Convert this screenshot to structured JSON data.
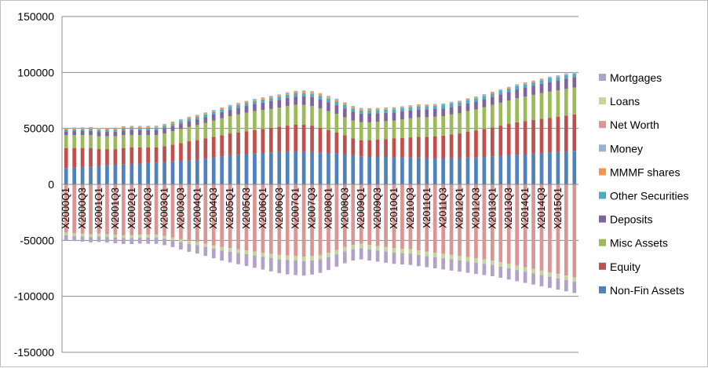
{
  "chart_data": {
    "type": "bar",
    "stacked": true,
    "title": "",
    "xlabel": "",
    "ylabel": "",
    "ylim": [
      -150000,
      150000
    ],
    "yticks": [
      150000,
      100000,
      50000,
      0,
      -50000,
      -100000,
      -150000
    ],
    "ytick_labels": [
      "150000",
      "100000",
      "50000",
      "0",
      "-50000",
      "-100000",
      "-150000"
    ],
    "grid": "horizontal",
    "legend_position": "right",
    "categories": [
      "X2000Q1",
      "X2000Q2",
      "X2000Q3",
      "X2000Q4",
      "X2001Q1",
      "X2001Q2",
      "X2001Q3",
      "X2001Q4",
      "X2002Q1",
      "X2002Q2",
      "X2002Q3",
      "X2002Q4",
      "X2003Q1",
      "X2003Q2",
      "X2003Q3",
      "X2003Q4",
      "X2004Q1",
      "X2004Q2",
      "X2004Q3",
      "X2004Q4",
      "X2005Q1",
      "X2005Q2",
      "X2005Q3",
      "X2005Q4",
      "X2006Q1",
      "X2006Q2",
      "X2006Q3",
      "X2006Q4",
      "X2007Q1",
      "X2007Q2",
      "X2007Q3",
      "X2007Q4",
      "X2008Q1",
      "X2008Q2",
      "X2008Q3",
      "X2008Q4",
      "X2009Q1",
      "X2009Q2",
      "X2009Q3",
      "X2009Q4",
      "X2010Q1",
      "X2010Q2",
      "X2010Q3",
      "X2010Q4",
      "X2011Q1",
      "X2011Q2",
      "X2011Q3",
      "X2011Q4",
      "X2012Q1",
      "X2012Q2",
      "X2012Q3",
      "X2012Q4",
      "X2013Q1",
      "X2013Q2",
      "X2013Q3",
      "X2013Q4",
      "X2014Q1",
      "X2014Q2",
      "X2014Q3",
      "X2014Q4",
      "X2015Q1",
      "X2015Q2",
      "X2015Q3"
    ],
    "shown_category_labels": [
      "X2000Q1",
      "X2000Q3",
      "X2001Q1",
      "X2001Q3",
      "X2002Q1",
      "X2002Q3",
      "X2003Q1",
      "X2003Q3",
      "X2004Q1",
      "X2004Q3",
      "X2005Q1",
      "X2005Q3",
      "X2006Q1",
      "X2006Q3",
      "X2007Q1",
      "X2007Q3",
      "X2008Q1",
      "X2008Q3",
      "X2009Q1",
      "X2009Q3",
      "X2010Q1",
      "X2010Q3",
      "X2011Q1",
      "X2011Q3",
      "X2012Q1",
      "X2012Q3",
      "X2013Q1",
      "X2013Q3",
      "X2014Q1",
      "X2014Q3",
      "X2015Q1"
    ],
    "series": [
      {
        "name": "Non-Fin Assets",
        "color": "#4f81bd",
        "values": [
          14500,
          15000,
          15500,
          16000,
          16500,
          17000,
          17500,
          18000,
          18200,
          18500,
          19000,
          19500,
          20000,
          20500,
          21000,
          21500,
          22000,
          23000,
          24000,
          25000,
          26000,
          26500,
          27000,
          27500,
          28000,
          28500,
          29000,
          29500,
          29500,
          29500,
          29000,
          28500,
          28000,
          27500,
          27000,
          26000,
          25000,
          24500,
          24500,
          24500,
          24000,
          24000,
          24000,
          24000,
          23500,
          23500,
          23500,
          23500,
          23500,
          24000,
          24000,
          24500,
          25000,
          25500,
          26000,
          26500,
          27000,
          27500,
          28000,
          28500,
          29000,
          29500,
          30000
        ]
      },
      {
        "name": "Equity",
        "color": "#c0504d",
        "values": [
          18000,
          17500,
          17000,
          16500,
          15000,
          14500,
          14000,
          14500,
          15000,
          14500,
          14000,
          13500,
          14000,
          15000,
          16000,
          17000,
          17500,
          18000,
          18500,
          19000,
          19500,
          20000,
          20500,
          21000,
          21500,
          22000,
          22500,
          23000,
          24000,
          24000,
          23500,
          22000,
          20500,
          19000,
          17000,
          15000,
          14500,
          15000,
          15500,
          16000,
          17000,
          17500,
          18000,
          18500,
          19000,
          19500,
          20000,
          21000,
          22000,
          23000,
          24000,
          25000,
          26000,
          27000,
          28000,
          29000,
          29500,
          30000,
          30500,
          31000,
          31500,
          32000,
          32500
        ]
      },
      {
        "name": "Misc Assets",
        "color": "#9bbb59",
        "values": [
          11500,
          11500,
          11500,
          11500,
          11500,
          11500,
          11500,
          11500,
          11000,
          11000,
          11000,
          11000,
          11500,
          12000,
          12500,
          13000,
          13500,
          14000,
          14500,
          15000,
          15500,
          16000,
          16500,
          17000,
          17000,
          17000,
          17000,
          17500,
          17500,
          17500,
          17500,
          17500,
          17000,
          16500,
          16000,
          16000,
          16000,
          16000,
          16000,
          16000,
          16000,
          16500,
          17000,
          17500,
          17500,
          17500,
          17500,
          18000,
          18000,
          18500,
          19000,
          19500,
          20000,
          20500,
          21000,
          21500,
          22000,
          22500,
          23000,
          23500,
          23500,
          24000,
          24000
        ]
      },
      {
        "name": "Deposits",
        "color": "#8064a2",
        "values": [
          3500,
          3600,
          3700,
          3800,
          3900,
          4000,
          4100,
          4200,
          4300,
          4400,
          4500,
          4600,
          4700,
          4800,
          4900,
          5000,
          5100,
          5200,
          5400,
          5600,
          5800,
          6000,
          6200,
          6400,
          6600,
          6800,
          7000,
          7200,
          7400,
          7600,
          7800,
          8000,
          8000,
          8000,
          7900,
          7800,
          7700,
          7600,
          7500,
          7400,
          7300,
          7200,
          7100,
          7000,
          6900,
          6800,
          6700,
          6700,
          6700,
          6800,
          6900,
          7000,
          7200,
          7400,
          7600,
          7800,
          8000,
          8200,
          8400,
          8600,
          8800,
          9000,
          9200
        ]
      },
      {
        "name": "Other Securities",
        "color": "#4bacc6",
        "values": [
          1500,
          1550,
          1600,
          1650,
          1700,
          1750,
          1800,
          1850,
          1900,
          1950,
          2000,
          2050,
          2100,
          2150,
          2200,
          2250,
          2300,
          2350,
          2400,
          2450,
          2500,
          2550,
          2600,
          2650,
          2700,
          2750,
          2800,
          2850,
          2900,
          2950,
          3000,
          3000,
          3000,
          2950,
          2900,
          2850,
          2800,
          2750,
          2750,
          2750,
          2750,
          2750,
          2800,
          2850,
          2900,
          2950,
          3000,
          3000,
          3000,
          3000,
          3000,
          3000,
          3000,
          3000,
          3000,
          3000,
          3000,
          3000,
          3000,
          3000,
          3000,
          3000,
          3000
        ]
      },
      {
        "name": "MMMF shares",
        "color": "#f79646",
        "values": [
          800,
          850,
          900,
          950,
          1000,
          1050,
          1100,
          1100,
          1100,
          1100,
          1050,
          1000,
          950,
          900,
          900,
          900,
          900,
          900,
          900,
          900,
          950,
          1000,
          1050,
          1100,
          1150,
          1200,
          1300,
          1400,
          1500,
          1600,
          1700,
          1800,
          1800,
          1800,
          1700,
          1600,
          1500,
          1400,
          1300,
          1200,
          1100,
          1000,
          950,
          900,
          850,
          800,
          800,
          800,
          800,
          800,
          800,
          800,
          800,
          800,
          800,
          800,
          800,
          800,
          800,
          800,
          800,
          800,
          800
        ]
      },
      {
        "name": "Money",
        "color": "#95b3d7",
        "values": [
          800,
          800,
          800,
          800,
          800,
          800,
          800,
          800,
          800,
          800,
          800,
          800,
          800,
          800,
          800,
          800,
          800,
          800,
          800,
          800,
          800,
          800,
          800,
          800,
          800,
          800,
          800,
          800,
          800,
          800,
          800,
          800,
          800,
          800,
          800,
          800,
          800,
          800,
          800,
          800,
          800,
          800,
          800,
          800,
          800,
          800,
          800,
          800,
          800,
          800,
          800,
          800,
          800,
          800,
          800,
          800,
          800,
          800,
          800,
          800,
          800,
          800,
          800
        ]
      },
      {
        "name": "Net Worth",
        "color": "#d99694",
        "values": [
          -43000,
          -43500,
          -44000,
          -44500,
          -44000,
          -44500,
          -45000,
          -45500,
          -45500,
          -45000,
          -45000,
          -45000,
          -46000,
          -47500,
          -49000,
          -50500,
          -51500,
          -53000,
          -54500,
          -56000,
          -57000,
          -58000,
          -59000,
          -60000,
          -61000,
          -62000,
          -63000,
          -63500,
          -64000,
          -64500,
          -64000,
          -63000,
          -61000,
          -58500,
          -56000,
          -54000,
          -53000,
          -54000,
          -55000,
          -56000,
          -57000,
          -57500,
          -58000,
          -59000,
          -60000,
          -61000,
          -62000,
          -63000,
          -64000,
          -65000,
          -66000,
          -67000,
          -68000,
          -69500,
          -71000,
          -72500,
          -74000,
          -75500,
          -77000,
          -78500,
          -80000,
          -81500,
          -83000
        ]
      },
      {
        "name": "Loans",
        "color": "#c3d69b",
        "values": [
          -2500,
          -2500,
          -2500,
          -2500,
          -2500,
          -2500,
          -2500,
          -2500,
          -2500,
          -2500,
          -2500,
          -2500,
          -2500,
          -2500,
          -2600,
          -2700,
          -2800,
          -2900,
          -3000,
          -3100,
          -3200,
          -3300,
          -3400,
          -3500,
          -3600,
          -3700,
          -3800,
          -3900,
          -4000,
          -4000,
          -4000,
          -4000,
          -4000,
          -4000,
          -4000,
          -4000,
          -4000,
          -4000,
          -4000,
          -4000,
          -4000,
          -4000,
          -4000,
          -4000,
          -4000,
          -4000,
          -4000,
          -4000,
          -4000,
          -4000,
          -4000,
          -4000,
          -4000,
          -4000,
          -4000,
          -4000,
          -4000,
          -4000,
          -4000,
          -4000,
          -4000,
          -4000,
          -4000
        ]
      },
      {
        "name": "Mortgages",
        "color": "#b3a2c7",
        "values": [
          -4500,
          -4600,
          -4700,
          -4800,
          -4900,
          -5000,
          -5100,
          -5200,
          -5300,
          -5400,
          -5500,
          -5600,
          -5800,
          -6000,
          -6500,
          -7000,
          -7500,
          -8000,
          -8500,
          -9000,
          -9500,
          -10000,
          -10500,
          -11000,
          -11500,
          -12000,
          -12500,
          -13000,
          -13000,
          -13000,
          -12500,
          -12000,
          -11500,
          -11000,
          -10500,
          -10000,
          -10000,
          -10000,
          -10000,
          -10000,
          -10000,
          -10000,
          -10000,
          -10000,
          -10000,
          -10000,
          -10000,
          -10000,
          -10000,
          -10000,
          -10000,
          -10000,
          -10000,
          -10000,
          -10000,
          -10000,
          -10000,
          -10000,
          -10000,
          -10000,
          -10000,
          -10000,
          -10000
        ]
      }
    ],
    "legend_order": [
      "Mortgages",
      "Loans",
      "Net Worth",
      "Money",
      "MMMF shares",
      "Other Securities",
      "Deposits",
      "Misc Assets",
      "Equity",
      "Non-Fin Assets"
    ]
  }
}
